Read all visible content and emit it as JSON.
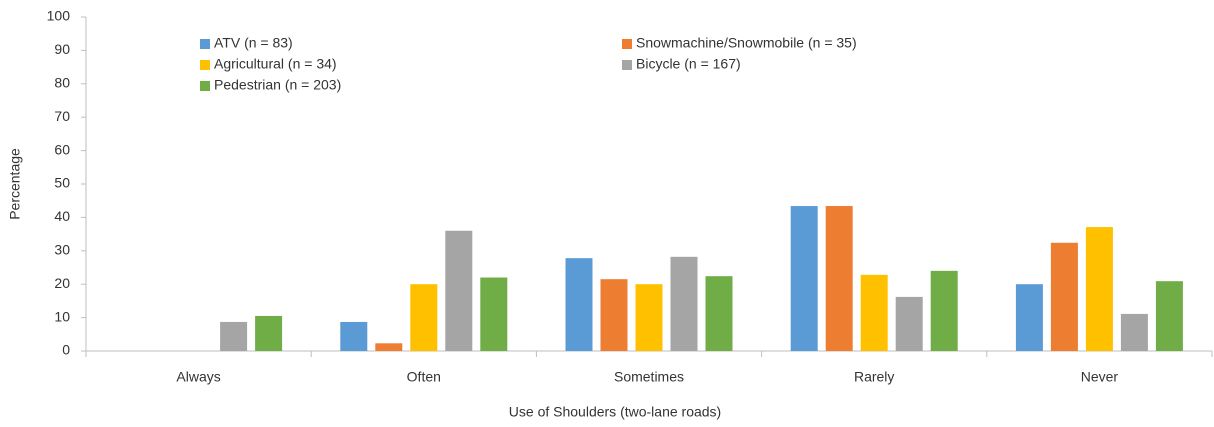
{
  "chart_data": {
    "type": "bar",
    "xlabel": "Use of Shoulders (two-lane roads)",
    "ylabel": "Percentage",
    "categories": [
      "Always",
      "Often",
      "Sometimes",
      "Rarely",
      "Never"
    ],
    "series": [
      {
        "name": "ATV (n = 83)",
        "color": "#5b9bd5",
        "values": [
          0,
          8.7,
          27.8,
          43.4,
          20
        ]
      },
      {
        "name": "Snowmachine/Snowmobile (n = 35)",
        "color": "#ed7d31",
        "values": [
          0,
          2.3,
          21.5,
          43.4,
          32.4
        ]
      },
      {
        "name": "Agricultural (n = 34)",
        "color": "#ffc000",
        "values": [
          0,
          20,
          20,
          22.8,
          37.1
        ]
      },
      {
        "name": "Bicycle (n = 167)",
        "color": "#a5a5a5",
        "values": [
          8.7,
          36,
          28.2,
          16.2,
          11.1
        ]
      },
      {
        "name": "Pedestrian (n = 203)",
        "color": "#70ad47",
        "values": [
          10.5,
          22,
          22.4,
          24,
          20.9
        ]
      }
    ],
    "ylim": [
      0,
      100
    ],
    "yticks": [
      0,
      10,
      20,
      30,
      40,
      50,
      60,
      70,
      80,
      90,
      100
    ],
    "grid": false
  }
}
